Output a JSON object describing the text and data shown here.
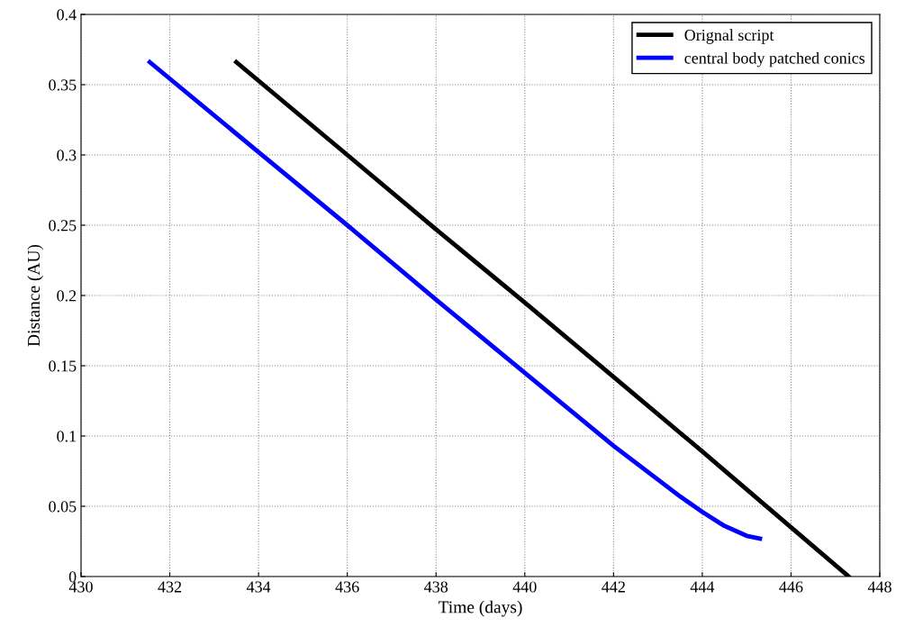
{
  "chart_data": {
    "type": "line",
    "xlabel": "Time (days)",
    "ylabel": "Distance (AU)",
    "xlim": [
      430,
      448
    ],
    "xticks": [
      430,
      432,
      434,
      436,
      438,
      440,
      442,
      444,
      446,
      448
    ],
    "ylim": [
      0,
      0.4
    ],
    "yticks": [
      0,
      0.05,
      0.1,
      0.15,
      0.2,
      0.25,
      0.3,
      0.35,
      0.4
    ],
    "grid": true,
    "legend": "top right",
    "line_style": "solid",
    "series": [
      {
        "name": "Orignal script",
        "color": "#000000",
        "x": [
          433.5,
          436,
          438,
          440,
          442,
          444,
          446,
          447.3
        ],
        "values": [
          0.366,
          0.3,
          0.247,
          0.195,
          0.142,
          0.089,
          0.035,
          0
        ]
      },
      {
        "name": "central body patched conics",
        "color": "#0000ff",
        "x": [
          431.55,
          434,
          436,
          438,
          440,
          441,
          442,
          443,
          443.5,
          444,
          444.5,
          445,
          445.3
        ],
        "values": [
          0.366,
          0.302,
          0.25,
          0.197,
          0.145,
          0.119,
          0.093,
          0.069,
          0.057,
          0.046,
          0.036,
          0.029,
          0.027
        ]
      }
    ]
  }
}
